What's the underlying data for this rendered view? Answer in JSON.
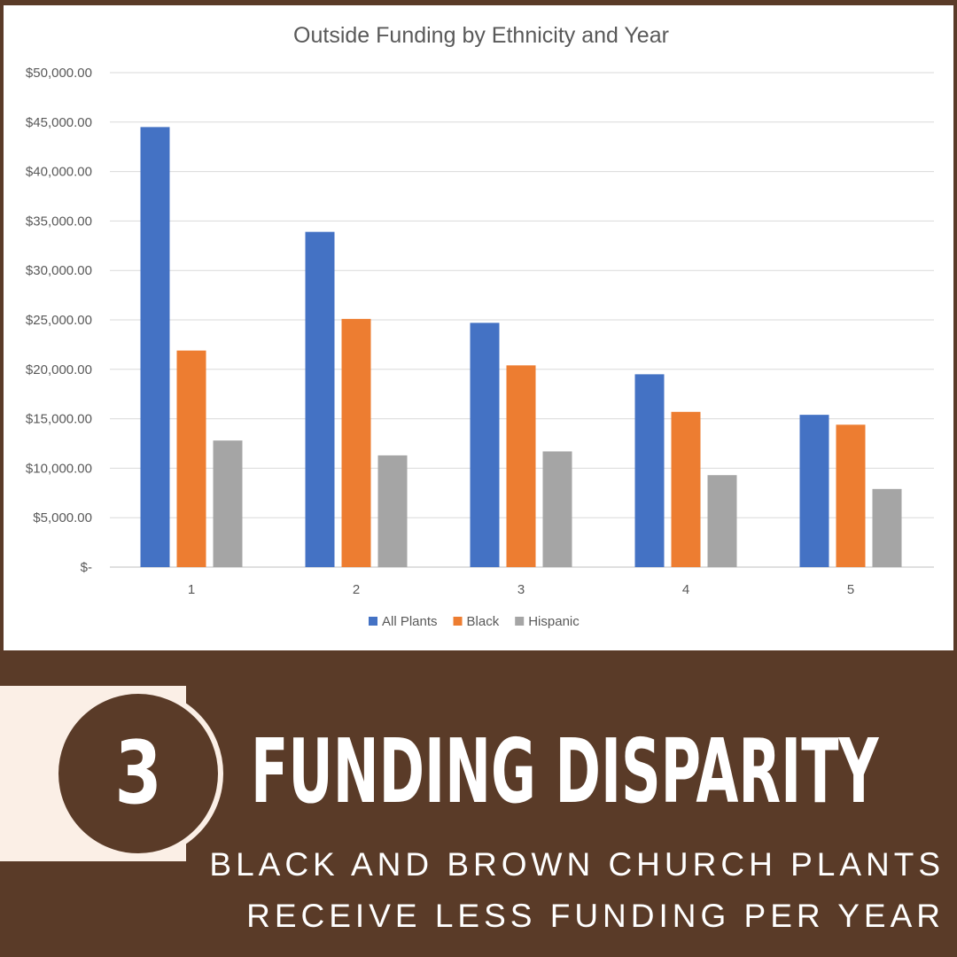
{
  "chart_data": {
    "type": "bar",
    "title": "Outside Funding by Ethnicity and Year",
    "categories": [
      "1",
      "2",
      "3",
      "4",
      "5"
    ],
    "series": [
      {
        "name": "All Plants",
        "color": "#4472c4",
        "values": [
          44500,
          33900,
          24700,
          19500,
          15400
        ]
      },
      {
        "name": "Black",
        "color": "#ed7d31",
        "values": [
          21900,
          25100,
          20400,
          15700,
          14400
        ]
      },
      {
        "name": "Hispanic",
        "color": "#a5a5a5",
        "values": [
          12800,
          11300,
          11700,
          9300,
          7900
        ]
      }
    ],
    "ylim": [
      0,
      50000
    ],
    "yticks": [
      0,
      5000,
      10000,
      15000,
      20000,
      25000,
      30000,
      35000,
      40000,
      45000,
      50000
    ],
    "ytick_labels": [
      "$-",
      "$5,000.00",
      "$10,000.00",
      "$15,000.00",
      "$20,000.00",
      "$25,000.00",
      "$30,000.00",
      "$35,000.00",
      "$40,000.00",
      "$45,000.00",
      "$50,000.00"
    ],
    "xlabel": "",
    "ylabel": "",
    "grid": true,
    "legend_position": "bottom"
  },
  "banner": {
    "number": "3",
    "headline": "Funding Disparity",
    "subline_1": "BLACK AND BROWN CHURCH PLANTS",
    "subline_2": "RECEIVE LESS FUNDING PER YEAR"
  },
  "colors": {
    "background": "#5a3b28",
    "accent": "#fbefe6",
    "text": "#ffffff"
  }
}
